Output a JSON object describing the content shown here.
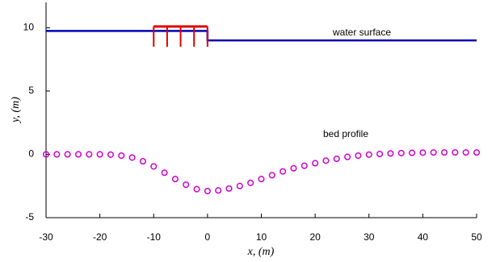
{
  "chart_data": {
    "type": "line",
    "xlabel": "x, (m)",
    "ylabel": "y, (m)",
    "xlim": [
      -30,
      50
    ],
    "ylim": [
      -5,
      12
    ],
    "xticks": [
      -30,
      -20,
      -10,
      0,
      10,
      20,
      30,
      40,
      50
    ],
    "yticks": [
      -5,
      0,
      5,
      10
    ],
    "series": [
      {
        "name": "water surface",
        "color": "#0000b4",
        "style": "line",
        "x": [
          -30,
          0,
          0,
          50
        ],
        "values": [
          9.75,
          9.75,
          9.0,
          9.0
        ]
      },
      {
        "name": "bed profile",
        "color": "#d000d0",
        "style": "markers",
        "x": [
          -30,
          -28,
          -26,
          -24,
          -22,
          -20,
          -18,
          -16,
          -14,
          -12,
          -10,
          -8,
          -6,
          -4,
          -2,
          0,
          2,
          4,
          6,
          8,
          10,
          12,
          14,
          16,
          18,
          20,
          22,
          24,
          26,
          28,
          30,
          32,
          34,
          36,
          38,
          40,
          42,
          44,
          46,
          48,
          50
        ],
        "values": [
          0,
          0,
          0,
          0,
          0,
          0,
          -0.02,
          -0.1,
          -0.25,
          -0.55,
          -0.95,
          -1.45,
          -1.95,
          -2.4,
          -2.75,
          -2.9,
          -2.85,
          -2.7,
          -2.5,
          -2.25,
          -1.95,
          -1.65,
          -1.35,
          -1.1,
          -0.9,
          -0.7,
          -0.5,
          -0.35,
          -0.2,
          -0.1,
          -0.02,
          0.03,
          0.07,
          0.1,
          0.12,
          0.14,
          0.15,
          0.15,
          0.15,
          0.15,
          0.15
        ]
      }
    ],
    "structure": {
      "color": "#e00000",
      "x": [
        -10,
        0
      ],
      "top": 10.1,
      "legs": [
        -10,
        -7.5,
        -5,
        -2.5,
        0
      ],
      "bottom": 8.5
    }
  }
}
